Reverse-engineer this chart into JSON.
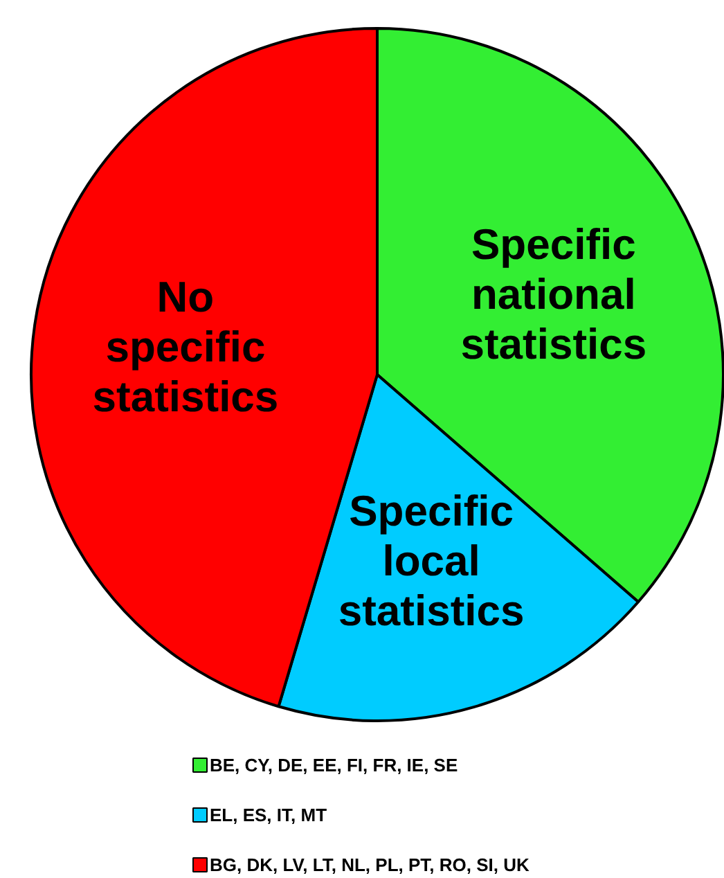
{
  "chart_data": {
    "type": "pie",
    "categories": [
      "BE, CY, DE, EE, FI, FR, IE, SE",
      "EL, ES, IT, MT",
      "BG, DK, LV, LT, NL, PL, PT, RO, SI, UK"
    ],
    "values": [
      36.4,
      18.2,
      45.4
    ],
    "colors": [
      "#33ee33",
      "#00ccff",
      "#ff0000"
    ],
    "annotations": [
      "Specific national statistics",
      "Specific local statistics",
      "No specific statistics"
    ],
    "legend": "bottom"
  }
}
